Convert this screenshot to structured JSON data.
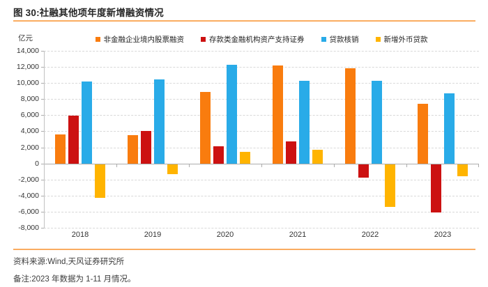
{
  "figure": {
    "title": "图 30:社融其他项年度新增融资情况",
    "source": "资料来源:Wind,天风证券研究所",
    "note": "备注:2023 年数据为 1-11 月情况。"
  },
  "chart_data": {
    "type": "bar",
    "title": "社融其他项年度新增融资情况",
    "unit_label": "亿元",
    "categories": [
      "2018",
      "2019",
      "2020",
      "2021",
      "2022",
      "2023"
    ],
    "series": [
      {
        "name": "非金融企业境内股票融资",
        "color": "#F97C0E",
        "values": [
          3600,
          3500,
          8900,
          12150,
          11800,
          7400
        ]
      },
      {
        "name": "存款类金融机构资产支持证券",
        "color": "#CC1111",
        "values": [
          5950,
          4050,
          2150,
          2750,
          -1700,
          -6000
        ]
      },
      {
        "name": "贷款核销",
        "color": "#29ABE8",
        "values": [
          10200,
          10450,
          12250,
          10300,
          10250,
          8700
        ]
      },
      {
        "name": "新增外币贷款",
        "color": "#FFB400",
        "values": [
          -4200,
          -1250,
          1400,
          1700,
          -5300,
          -1500
        ]
      }
    ],
    "ylim": [
      -8000,
      14000
    ],
    "ytick_step": 2000,
    "yticklabels": [
      "14,000",
      "12,000",
      "10,000",
      "8,000",
      "6,000",
      "4,000",
      "2,000",
      "0",
      "-2,000",
      "-4,000",
      "-6,000",
      "-8,000"
    ],
    "grid": "horizontal-dashed",
    "legend_position": "top-center"
  },
  "colors": {
    "accent_divider": "#FAAC60",
    "series1": "#F97C0E",
    "series2": "#CC1111",
    "series3": "#29ABE8",
    "series4": "#FFB400"
  }
}
